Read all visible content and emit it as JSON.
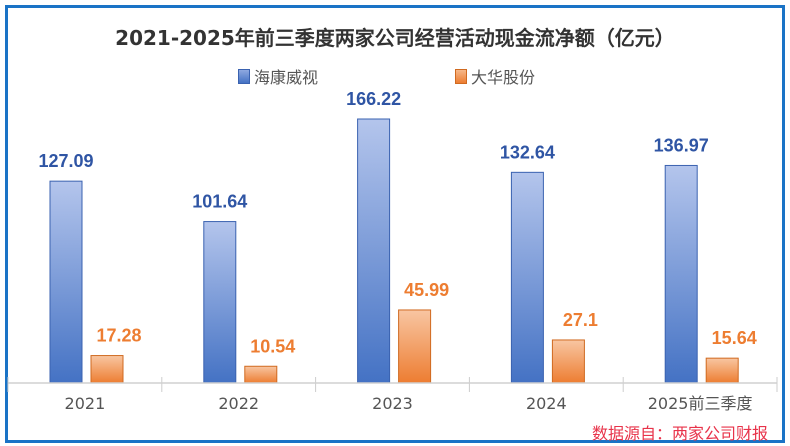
{
  "chart_data": {
    "type": "bar",
    "title": "2021-2025年前三季度两家公司经营活动现金流净额（亿元）",
    "categories": [
      "2021",
      "2022",
      "2023",
      "2024",
      "2025前三季度"
    ],
    "series": [
      {
        "name": "海康威视",
        "values": [
          127.09,
          101.64,
          166.22,
          132.64,
          136.97
        ],
        "color": "#4472c4",
        "label_color": "#2f55a4"
      },
      {
        "name": "大华股份",
        "values": [
          17.28,
          10.54,
          45.99,
          27.1,
          15.64
        ],
        "color": "#ed7d31",
        "label_color": "#ed7d31"
      }
    ],
    "labels": [
      [
        "127.09",
        "101.64",
        "166.22",
        "132.64",
        "136.97"
      ],
      [
        "17.28",
        "10.54",
        "45.99",
        "27.1",
        "15.64"
      ]
    ],
    "xlabel": "",
    "ylabel": "",
    "ylim": [
      0,
      166.22
    ],
    "grid": false,
    "legend_position": "top"
  },
  "source": "数据源自：两家公司财报"
}
